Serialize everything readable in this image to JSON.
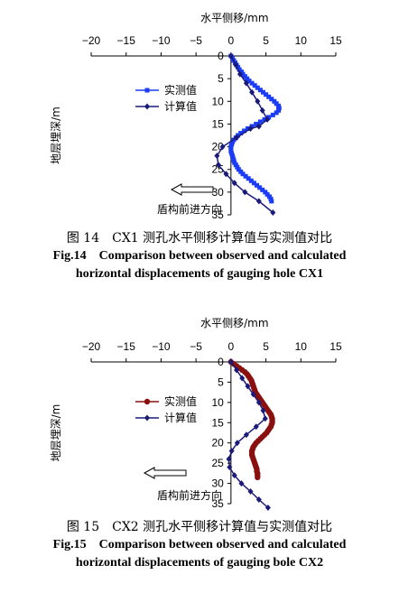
{
  "chart_data": [
    {
      "type": "line",
      "xlabel": "水平侧移/mm",
      "ylabel": "地层埋深/m",
      "xlim": [
        -20,
        15
      ],
      "ylim": [
        0,
        35
      ],
      "y_inverted": true,
      "x_ticks": [
        "−20",
        "−15",
        "−10",
        "−5",
        "0",
        "5",
        "10",
        "15"
      ],
      "y_ticks": [
        "0",
        "5",
        "10",
        "15",
        "20",
        "25",
        "30",
        "35"
      ],
      "annotation": "盾构前进方向",
      "legend": [
        "实测值",
        "计算值"
      ],
      "series": [
        {
          "name": "实测值",
          "color": "#1a3cf5",
          "marker": "square",
          "points": [
            [
              0,
              0
            ],
            [
              0.2,
              0.5
            ],
            [
              0.4,
              1
            ],
            [
              0.6,
              1.5
            ],
            [
              0.8,
              2
            ],
            [
              1,
              2.5
            ],
            [
              1.2,
              3
            ],
            [
              1.5,
              3.5
            ],
            [
              1.7,
              4
            ],
            [
              2,
              4.5
            ],
            [
              2.3,
              5
            ],
            [
              2.6,
              5.5
            ],
            [
              3,
              6
            ],
            [
              3.4,
              6.5
            ],
            [
              3.8,
              7
            ],
            [
              4.2,
              7.5
            ],
            [
              4.6,
              8
            ],
            [
              5,
              8.5
            ],
            [
              5.4,
              9
            ],
            [
              5.8,
              9.5
            ],
            [
              6.2,
              10
            ],
            [
              6.5,
              10.5
            ],
            [
              6.8,
              11
            ],
            [
              6.9,
              11.5
            ],
            [
              6.8,
              12
            ],
            [
              6.5,
              12.5
            ],
            [
              6,
              13
            ],
            [
              5.4,
              13.5
            ],
            [
              4.8,
              14
            ],
            [
              4.2,
              14.5
            ],
            [
              3.6,
              15
            ],
            [
              3,
              15.5
            ],
            [
              2.4,
              16
            ],
            [
              1.9,
              16.5
            ],
            [
              1.4,
              17
            ],
            [
              1,
              17.5
            ],
            [
              0.7,
              18
            ],
            [
              0.4,
              18.5
            ],
            [
              0.2,
              19
            ],
            [
              0.1,
              19.5
            ],
            [
              0,
              20
            ],
            [
              0,
              20.5
            ],
            [
              0,
              21
            ],
            [
              0.1,
              21.5
            ],
            [
              0.2,
              22
            ],
            [
              0.3,
              22.5
            ],
            [
              0.4,
              23
            ],
            [
              0.5,
              23.5
            ],
            [
              0.7,
              24
            ],
            [
              0.9,
              24.5
            ],
            [
              1.1,
              25
            ],
            [
              1.4,
              25.5
            ],
            [
              1.7,
              26
            ],
            [
              2.1,
              26.5
            ],
            [
              2.5,
              27
            ],
            [
              2.9,
              27.5
            ],
            [
              3.3,
              28
            ],
            [
              3.7,
              28.5
            ],
            [
              4.1,
              29
            ],
            [
              4.5,
              29.5
            ],
            [
              4.9,
              30
            ],
            [
              5.2,
              30.5
            ],
            [
              5.5,
              31
            ],
            [
              5.7,
              31.5
            ],
            [
              5.8,
              32
            ]
          ]
        },
        {
          "name": "计算值",
          "color": "#1a1a7a",
          "marker": "diamond",
          "points": [
            [
              0,
              0
            ],
            [
              0.7,
              2
            ],
            [
              1.3,
              4
            ],
            [
              2.2,
              6
            ],
            [
              3,
              8
            ],
            [
              3.8,
              10
            ],
            [
              4.5,
              12
            ],
            [
              5.2,
              14
            ],
            [
              4,
              15.5
            ],
            [
              2.8,
              16
            ],
            [
              0.8,
              18
            ],
            [
              -1.2,
              20
            ],
            [
              -2,
              22
            ],
            [
              -1.8,
              24
            ],
            [
              -0.7,
              26
            ],
            [
              0.5,
              28
            ],
            [
              2,
              30
            ],
            [
              4,
              32
            ],
            [
              6,
              34.5
            ]
          ]
        }
      ]
    },
    {
      "type": "line",
      "xlabel": "水平侧移/mm",
      "ylabel": "地层埋深/m",
      "xlim": [
        -20,
        15
      ],
      "ylim": [
        0,
        35
      ],
      "y_inverted": true,
      "x_ticks": [
        "−20",
        "−15",
        "−10",
        "−5",
        "0",
        "5",
        "10",
        "15"
      ],
      "y_ticks": [
        "0",
        "5",
        "10",
        "15",
        "20",
        "25",
        "30",
        "35"
      ],
      "annotation": "盾构前进方向",
      "legend": [
        "实测值",
        "计算值"
      ],
      "series": [
        {
          "name": "实测值",
          "color": "#8a1010",
          "marker": "circle",
          "points": [
            [
              0,
              0
            ],
            [
              0.4,
              0.5
            ],
            [
              0.8,
              1
            ],
            [
              1.2,
              1.5
            ],
            [
              1.6,
              2
            ],
            [
              2,
              2.5
            ],
            [
              2.3,
              3
            ],
            [
              2.5,
              3.5
            ],
            [
              2.7,
              4
            ],
            [
              2.9,
              4.5
            ],
            [
              3,
              5
            ],
            [
              3.1,
              5.5
            ],
            [
              3.2,
              6
            ],
            [
              3.3,
              6.5
            ],
            [
              3.4,
              7
            ],
            [
              3.5,
              7.5
            ],
            [
              3.7,
              8
            ],
            [
              3.9,
              8.5
            ],
            [
              4.1,
              9
            ],
            [
              4.3,
              9.5
            ],
            [
              4.5,
              10
            ],
            [
              4.7,
              10.5
            ],
            [
              4.9,
              11
            ],
            [
              5.1,
              11.5
            ],
            [
              5.3,
              12
            ],
            [
              5.5,
              12.5
            ],
            [
              5.7,
              13
            ],
            [
              5.8,
              13.5
            ],
            [
              5.9,
              14
            ],
            [
              5.9,
              14.5
            ],
            [
              5.9,
              15
            ],
            [
              5.8,
              15.5
            ],
            [
              5.7,
              16
            ],
            [
              5.5,
              16.5
            ],
            [
              5.3,
              17
            ],
            [
              5.1,
              17.5
            ],
            [
              4.8,
              18
            ],
            [
              4.5,
              18.5
            ],
            [
              4.2,
              19
            ],
            [
              3.9,
              19.5
            ],
            [
              3.6,
              20
            ],
            [
              3.4,
              20.5
            ],
            [
              3.2,
              21
            ],
            [
              3.1,
              21.5
            ],
            [
              3,
              22
            ],
            [
              3,
              22.5
            ],
            [
              3,
              23
            ],
            [
              3.1,
              23.5
            ],
            [
              3.2,
              24
            ],
            [
              3.3,
              24.5
            ],
            [
              3.4,
              25
            ],
            [
              3.5,
              25.5
            ],
            [
              3.6,
              26
            ],
            [
              3.7,
              26.5
            ],
            [
              3.7,
              27
            ],
            [
              3.8,
              27.5
            ],
            [
              3.8,
              28
            ],
            [
              3.8,
              28.5
            ]
          ]
        },
        {
          "name": "计算值",
          "color": "#1a1a7a",
          "marker": "diamond",
          "points": [
            [
              0,
              0
            ],
            [
              0.8,
              2
            ],
            [
              1.6,
              4
            ],
            [
              2.4,
              6
            ],
            [
              3.2,
              8
            ],
            [
              4,
              10
            ],
            [
              4.6,
              12
            ],
            [
              4.9,
              14
            ],
            [
              3.6,
              16
            ],
            [
              2.2,
              18
            ],
            [
              0.9,
              20
            ],
            [
              0.1,
              22
            ],
            [
              -0.3,
              24
            ],
            [
              -0.2,
              26
            ],
            [
              0.5,
              28
            ],
            [
              1.5,
              30
            ],
            [
              2.8,
              32
            ],
            [
              4,
              34
            ],
            [
              5.3,
              36
            ]
          ]
        }
      ]
    }
  ],
  "captions": [
    {
      "line1": "图 14　CX1 测孔水平侧移计算值与实测值对比",
      "line2": "Fig.14　Comparison between observed and calculated",
      "line3": "horizontal displacements of gauging hole CX1"
    },
    {
      "line1": "图 15　CX2 测孔水平侧移计算值与实测值对比",
      "line2": "Fig.15　Comparison between observed and calculated",
      "line3": "horizontal displacements of gauging bole CX2"
    }
  ]
}
